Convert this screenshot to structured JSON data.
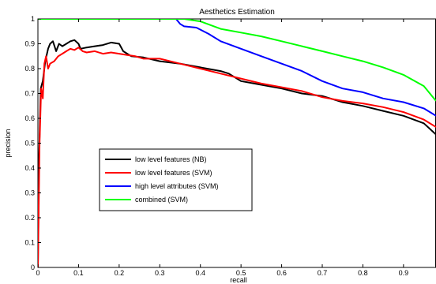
{
  "chart_data": {
    "type": "line",
    "title": "Aesthetics Estimation",
    "xlabel": "recall",
    "ylabel": "precision",
    "xlim": [
      0,
      0.98
    ],
    "ylim": [
      0,
      1
    ],
    "xticks": [
      0,
      0.1,
      0.2,
      0.3,
      0.4,
      0.5,
      0.6,
      0.7,
      0.8,
      0.9
    ],
    "yticks": [
      0,
      0.1,
      0.2,
      0.3,
      0.4,
      0.5,
      0.6,
      0.7,
      0.8,
      0.9,
      1
    ],
    "xtick_labels": [
      "0",
      "0.1",
      "0.2",
      "0.3",
      "0.4",
      "0.5",
      "0.6",
      "0.7",
      "0.8",
      "0.9"
    ],
    "ytick_labels": [
      "0",
      "0.1",
      "0.2",
      "0.3",
      "0.4",
      "0.5",
      "0.6",
      "0.7",
      "0.8",
      "0.9",
      "1"
    ],
    "grid": false,
    "legend_position": "center-left",
    "series": [
      {
        "name": "low level features (NB)",
        "color": "#000000",
        "points": [
          [
            0.0,
            0.0
          ],
          [
            0.003,
            0.45
          ],
          [
            0.007,
            0.72
          ],
          [
            0.012,
            0.75
          ],
          [
            0.018,
            0.83
          ],
          [
            0.025,
            0.88
          ],
          [
            0.03,
            0.9
          ],
          [
            0.037,
            0.91
          ],
          [
            0.045,
            0.87
          ],
          [
            0.052,
            0.9
          ],
          [
            0.06,
            0.89
          ],
          [
            0.07,
            0.9
          ],
          [
            0.08,
            0.91
          ],
          [
            0.09,
            0.915
          ],
          [
            0.1,
            0.9
          ],
          [
            0.105,
            0.88
          ],
          [
            0.12,
            0.885
          ],
          [
            0.14,
            0.89
          ],
          [
            0.16,
            0.895
          ],
          [
            0.18,
            0.905
          ],
          [
            0.2,
            0.9
          ],
          [
            0.21,
            0.87
          ],
          [
            0.22,
            0.86
          ],
          [
            0.23,
            0.85
          ],
          [
            0.26,
            0.845
          ],
          [
            0.3,
            0.83
          ],
          [
            0.35,
            0.82
          ],
          [
            0.4,
            0.805
          ],
          [
            0.45,
            0.79
          ],
          [
            0.47,
            0.78
          ],
          [
            0.5,
            0.75
          ],
          [
            0.55,
            0.735
          ],
          [
            0.6,
            0.72
          ],
          [
            0.65,
            0.7
          ],
          [
            0.7,
            0.69
          ],
          [
            0.75,
            0.665
          ],
          [
            0.8,
            0.65
          ],
          [
            0.85,
            0.63
          ],
          [
            0.9,
            0.61
          ],
          [
            0.95,
            0.58
          ],
          [
            0.98,
            0.535
          ]
        ]
      },
      {
        "name": "low level features (SVM)",
        "color": "#ff0000",
        "points": [
          [
            0.0,
            0.0
          ],
          [
            0.004,
            0.5
          ],
          [
            0.008,
            0.72
          ],
          [
            0.012,
            0.68
          ],
          [
            0.016,
            0.82
          ],
          [
            0.02,
            0.85
          ],
          [
            0.025,
            0.8
          ],
          [
            0.03,
            0.82
          ],
          [
            0.04,
            0.83
          ],
          [
            0.05,
            0.85
          ],
          [
            0.06,
            0.86
          ],
          [
            0.07,
            0.87
          ],
          [
            0.08,
            0.88
          ],
          [
            0.09,
            0.875
          ],
          [
            0.1,
            0.885
          ],
          [
            0.11,
            0.87
          ],
          [
            0.12,
            0.865
          ],
          [
            0.14,
            0.87
          ],
          [
            0.16,
            0.86
          ],
          [
            0.18,
            0.865
          ],
          [
            0.2,
            0.86
          ],
          [
            0.22,
            0.855
          ],
          [
            0.24,
            0.85
          ],
          [
            0.26,
            0.84
          ],
          [
            0.3,
            0.84
          ],
          [
            0.35,
            0.82
          ],
          [
            0.4,
            0.8
          ],
          [
            0.45,
            0.78
          ],
          [
            0.5,
            0.76
          ],
          [
            0.55,
            0.74
          ],
          [
            0.6,
            0.725
          ],
          [
            0.65,
            0.71
          ],
          [
            0.7,
            0.685
          ],
          [
            0.75,
            0.67
          ],
          [
            0.8,
            0.66
          ],
          [
            0.85,
            0.645
          ],
          [
            0.9,
            0.625
          ],
          [
            0.95,
            0.595
          ],
          [
            0.98,
            0.565
          ]
        ]
      },
      {
        "name": "high level attributes (SVM)",
        "color": "#0000ff",
        "points": [
          [
            0.0,
            1.0
          ],
          [
            0.34,
            1.0
          ],
          [
            0.35,
            0.98
          ],
          [
            0.36,
            0.97
          ],
          [
            0.39,
            0.965
          ],
          [
            0.42,
            0.94
          ],
          [
            0.45,
            0.91
          ],
          [
            0.5,
            0.88
          ],
          [
            0.55,
            0.85
          ],
          [
            0.6,
            0.82
          ],
          [
            0.65,
            0.79
          ],
          [
            0.7,
            0.75
          ],
          [
            0.75,
            0.72
          ],
          [
            0.8,
            0.705
          ],
          [
            0.85,
            0.68
          ],
          [
            0.9,
            0.665
          ],
          [
            0.95,
            0.64
          ],
          [
            0.98,
            0.61
          ]
        ]
      },
      {
        "name": "combined (SVM)",
        "color": "#00ff00",
        "points": [
          [
            0.0,
            1.0
          ],
          [
            0.36,
            1.0
          ],
          [
            0.4,
            0.99
          ],
          [
            0.45,
            0.96
          ],
          [
            0.5,
            0.945
          ],
          [
            0.55,
            0.93
          ],
          [
            0.6,
            0.91
          ],
          [
            0.65,
            0.89
          ],
          [
            0.7,
            0.87
          ],
          [
            0.75,
            0.85
          ],
          [
            0.8,
            0.83
          ],
          [
            0.85,
            0.805
          ],
          [
            0.9,
            0.775
          ],
          [
            0.95,
            0.73
          ],
          [
            0.98,
            0.67
          ]
        ]
      }
    ]
  }
}
